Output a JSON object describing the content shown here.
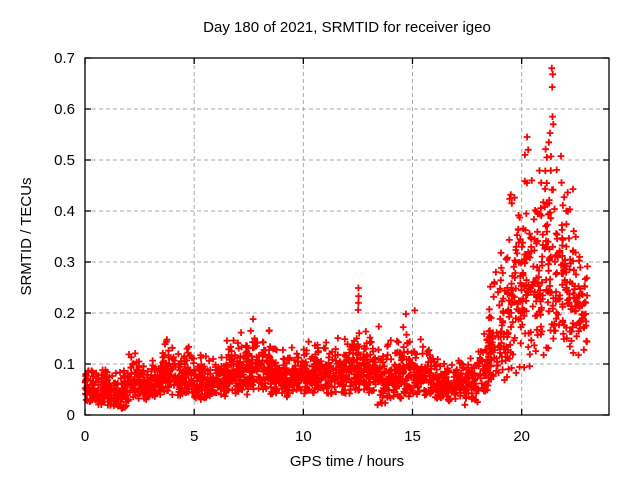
{
  "figure": {
    "kind": "gnuplot-scatter-png",
    "background": "#ffffff"
  },
  "chart_data": {
    "type": "scatter",
    "title": "Day 180 of 2021, SRMTID for receiver igeo",
    "xlabel": "GPS time / hours",
    "ylabel": "SRMTID / TECUs",
    "xlim": [
      0,
      24
    ],
    "ylim": [
      0,
      0.7
    ],
    "xticks": [
      0,
      5,
      10,
      15,
      20
    ],
    "xtick_labels": [
      "0",
      "5",
      "10",
      "15",
      "20"
    ],
    "yticks": [
      0,
      0.1,
      0.2,
      0.3,
      0.4,
      0.5,
      0.6,
      0.7
    ],
    "ytick_labels": [
      "0",
      "0.1",
      "0.2",
      "0.3",
      "0.4",
      "0.5",
      "0.6",
      "0.7"
    ],
    "grid": true,
    "grid_style": "dashed",
    "legend": "none",
    "marker": "plus",
    "marker_size_px": 6.8,
    "marker_color": "#ff0000",
    "grid_color": "#a8a8a8",
    "axis_color": "#000000",
    "series": [
      {
        "name": "SRMTID",
        "representation": "density_envelope",
        "envelope_bins_format": [
          "t_start_hours",
          "t_end_hours",
          "y_min_TECUs",
          "y_max_TECUs",
          "n_points",
          "skew"
        ],
        "envelope_bins": [
          [
            0.0,
            0.5,
            0.025,
            0.115,
            55,
            1.4
          ],
          [
            0.5,
            1.0,
            0.018,
            0.1,
            55,
            1.4
          ],
          [
            1.0,
            1.5,
            0.015,
            0.095,
            50,
            1.4
          ],
          [
            1.5,
            2.0,
            0.012,
            0.09,
            48,
            1.4
          ],
          [
            2.0,
            2.5,
            0.03,
            0.135,
            52,
            1.5
          ],
          [
            2.5,
            3.0,
            0.03,
            0.105,
            52,
            1.4
          ],
          [
            3.0,
            3.5,
            0.035,
            0.12,
            52,
            1.4
          ],
          [
            3.5,
            4.0,
            0.04,
            0.16,
            52,
            1.6
          ],
          [
            4.0,
            4.5,
            0.035,
            0.125,
            52,
            1.4
          ],
          [
            4.5,
            5.0,
            0.04,
            0.155,
            52,
            1.6
          ],
          [
            5.0,
            5.5,
            0.03,
            0.125,
            50,
            1.4
          ],
          [
            5.5,
            6.0,
            0.03,
            0.12,
            48,
            1.4
          ],
          [
            6.0,
            6.5,
            0.035,
            0.13,
            52,
            1.4
          ],
          [
            6.5,
            7.0,
            0.04,
            0.16,
            52,
            1.5
          ],
          [
            7.0,
            7.5,
            0.04,
            0.175,
            56,
            1.5
          ],
          [
            7.5,
            8.0,
            0.05,
            0.19,
            56,
            1.5
          ],
          [
            8.0,
            8.5,
            0.045,
            0.185,
            56,
            1.5
          ],
          [
            8.5,
            9.0,
            0.04,
            0.155,
            52,
            1.4
          ],
          [
            9.0,
            9.5,
            0.035,
            0.14,
            50,
            1.4
          ],
          [
            9.5,
            10.0,
            0.04,
            0.15,
            52,
            1.4
          ],
          [
            10.0,
            10.5,
            0.04,
            0.16,
            56,
            1.5
          ],
          [
            10.5,
            11.0,
            0.045,
            0.155,
            56,
            1.4
          ],
          [
            11.0,
            11.5,
            0.04,
            0.15,
            56,
            1.4
          ],
          [
            11.5,
            12.0,
            0.04,
            0.16,
            56,
            1.4
          ],
          [
            12.0,
            12.5,
            0.04,
            0.18,
            56,
            1.5
          ],
          [
            12.5,
            13.0,
            0.045,
            0.205,
            56,
            1.6
          ],
          [
            13.0,
            13.5,
            0.04,
            0.19,
            52,
            1.6
          ],
          [
            13.5,
            14.0,
            0.02,
            0.15,
            48,
            1.4
          ],
          [
            14.0,
            14.5,
            0.03,
            0.155,
            52,
            1.4
          ],
          [
            14.5,
            15.0,
            0.035,
            0.185,
            52,
            1.5
          ],
          [
            15.0,
            15.5,
            0.04,
            0.16,
            50,
            1.4
          ],
          [
            15.5,
            16.0,
            0.035,
            0.14,
            48,
            1.4
          ],
          [
            16.0,
            16.5,
            0.03,
            0.12,
            46,
            1.4
          ],
          [
            16.5,
            17.0,
            0.025,
            0.105,
            46,
            1.4
          ],
          [
            17.0,
            17.5,
            0.03,
            0.115,
            48,
            1.4
          ],
          [
            17.5,
            18.0,
            0.025,
            0.13,
            48,
            1.4
          ],
          [
            18.0,
            18.5,
            0.04,
            0.17,
            48,
            1.3
          ],
          [
            18.5,
            19.0,
            0.05,
            0.3,
            52,
            1.3
          ],
          [
            19.0,
            19.5,
            0.06,
            0.36,
            52,
            1.2
          ],
          [
            19.5,
            20.0,
            0.08,
            0.44,
            56,
            1.2
          ],
          [
            20.0,
            20.5,
            0.08,
            0.52,
            56,
            1.2
          ],
          [
            20.5,
            21.0,
            0.09,
            0.5,
            56,
            1.2
          ],
          [
            21.0,
            21.5,
            0.08,
            0.6,
            56,
            1.2
          ],
          [
            21.5,
            22.0,
            0.1,
            0.55,
            52,
            1.2
          ],
          [
            22.0,
            22.5,
            0.1,
            0.45,
            52,
            1.2
          ],
          [
            22.5,
            23.05,
            0.11,
            0.33,
            52,
            1.2
          ]
        ],
        "peak_points": [
          [
            21.38,
            0.68
          ],
          [
            21.42,
            0.668
          ],
          [
            21.4,
            0.643
          ],
          [
            21.41,
            0.585
          ],
          [
            21.45,
            0.57
          ],
          [
            21.3,
            0.553
          ],
          [
            20.25,
            0.545
          ],
          [
            20.3,
            0.52
          ],
          [
            20.15,
            0.51
          ],
          [
            21.15,
            0.505
          ],
          [
            19.5,
            0.432
          ],
          [
            19.45,
            0.424
          ],
          [
            19.55,
            0.415
          ],
          [
            22.05,
            0.4
          ],
          [
            12.52,
            0.249
          ],
          [
            12.53,
            0.233
          ],
          [
            12.52,
            0.22
          ],
          [
            12.51,
            0.206
          ],
          [
            15.1,
            0.205
          ],
          [
            14.7,
            0.198
          ],
          [
            7.7,
            0.188
          ],
          [
            17.4,
            0.02
          ],
          [
            13.4,
            0.02
          ],
          [
            1.7,
            0.013
          ]
        ]
      }
    ]
  }
}
